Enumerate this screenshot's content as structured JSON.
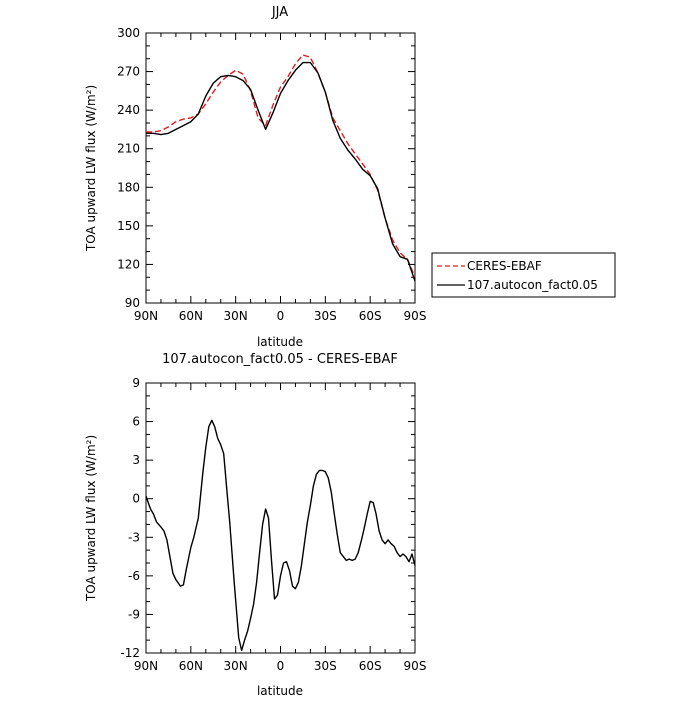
{
  "chart_data": [
    {
      "type": "line",
      "title": "JJA",
      "xlabel": "latitude",
      "ylabel": "TOA upward LW flux (W/m²)",
      "xlim": [
        90,
        -90
      ],
      "ylim": [
        90,
        300
      ],
      "xtick_values": [
        90,
        60,
        30,
        0,
        -30,
        -60,
        -90
      ],
      "xtick_labels": [
        "90N",
        "60N",
        "30N",
        "0",
        "30S",
        "60S",
        "90S"
      ],
      "ytick_values": [
        90,
        120,
        150,
        180,
        210,
        240,
        270,
        300
      ],
      "ytick_labels": [
        "90",
        "120",
        "150",
        "180",
        "210",
        "240",
        "270",
        "300"
      ],
      "legend": "right",
      "series": [
        {
          "name": "CERES-EBAF",
          "color": "#e31a1c",
          "dash": "dashed",
          "x": [
            90,
            85,
            80,
            75,
            70,
            65,
            60,
            55,
            50,
            45,
            40,
            35,
            30,
            25,
            20,
            15,
            10,
            5,
            0,
            -5,
            -10,
            -15,
            -20,
            -25,
            -30,
            -35,
            -40,
            -45,
            -50,
            -55,
            -60,
            -65,
            -70,
            -75,
            -80,
            -85,
            -90
          ],
          "y": [
            223,
            223,
            224,
            227,
            231,
            233,
            234,
            237,
            245,
            254,
            262,
            267,
            271,
            268,
            255,
            234,
            228,
            244,
            258,
            266,
            276,
            283,
            281,
            269,
            254,
            234,
            224,
            214,
            206,
            198,
            190,
            178,
            156,
            139,
            129,
            124,
            110
          ]
        },
        {
          "name": "107.autocon_fact0.05",
          "color": "#000000",
          "dash": "solid",
          "x": [
            90,
            85,
            80,
            75,
            70,
            65,
            60,
            55,
            50,
            45,
            40,
            35,
            30,
            25,
            20,
            15,
            10,
            5,
            0,
            -5,
            -10,
            -15,
            -20,
            -25,
            -30,
            -35,
            -40,
            -45,
            -50,
            -55,
            -60,
            -65,
            -70,
            -75,
            -80,
            -85,
            -90
          ],
          "y": [
            222,
            222,
            221,
            222,
            225,
            228,
            231,
            237,
            251,
            261,
            266,
            267,
            266,
            263,
            256,
            240,
            225,
            238,
            253,
            263,
            271,
            277,
            277,
            269,
            254,
            232,
            218,
            209,
            202,
            194,
            189,
            179,
            156,
            136,
            126,
            124,
            107
          ]
        }
      ]
    },
    {
      "type": "line",
      "title": "107.autocon_fact0.05 - CERES-EBAF",
      "xlabel": "latitude",
      "ylabel": "TOA upward LW flux (W/m²)",
      "xlim": [
        90,
        -90
      ],
      "ylim": [
        -12,
        9
      ],
      "xtick_values": [
        90,
        60,
        30,
        0,
        -30,
        -60,
        -90
      ],
      "xtick_labels": [
        "90N",
        "60N",
        "30N",
        "0",
        "30S",
        "60S",
        "90S"
      ],
      "ytick_values": [
        -12,
        -9,
        -6,
        -3,
        0,
        3,
        6,
        9
      ],
      "ytick_labels": [
        "-12",
        "-9",
        "-6",
        "-3",
        "0",
        "3",
        "6",
        "9"
      ],
      "series": [
        {
          "name": "",
          "color": "#000000",
          "dash": "solid",
          "x": [
            90,
            87,
            85,
            83,
            80,
            78,
            76,
            74,
            72,
            70,
            67,
            65,
            63,
            60,
            58,
            55,
            52,
            50,
            48,
            46,
            44,
            42,
            40,
            38,
            36,
            34,
            31,
            28,
            26,
            24,
            22,
            20,
            18,
            16,
            14,
            12,
            10,
            8,
            6,
            4,
            2,
            0,
            -2,
            -4,
            -6,
            -8,
            -10,
            -12,
            -14,
            -16,
            -18,
            -20,
            -22,
            -24,
            -26,
            -28,
            -30,
            -32,
            -34,
            -36,
            -38,
            -40,
            -42,
            -44,
            -46,
            -48,
            -50,
            -52,
            -54,
            -56,
            -58,
            -60,
            -62,
            -64,
            -66,
            -68,
            -70,
            -72,
            -74,
            -76,
            -78,
            -80,
            -82,
            -84,
            -86,
            -88,
            -90
          ],
          "y": [
            0.2,
            -0.8,
            -1.2,
            -1.8,
            -2.2,
            -2.5,
            -3.2,
            -4.5,
            -5.8,
            -6.3,
            -6.8,
            -6.7,
            -5.5,
            -3.8,
            -3.0,
            -1.5,
            2.0,
            4.0,
            5.6,
            6.1,
            5.6,
            4.7,
            4.2,
            3.5,
            0.8,
            -1.8,
            -6.5,
            -10.8,
            -11.8,
            -11.0,
            -10.3,
            -9.3,
            -8.2,
            -6.5,
            -4.2,
            -2.0,
            -0.8,
            -1.5,
            -4.8,
            -7.8,
            -7.5,
            -6.0,
            -5.0,
            -4.9,
            -5.6,
            -6.8,
            -7.0,
            -6.5,
            -5.2,
            -3.5,
            -1.8,
            -0.5,
            1.0,
            1.9,
            2.2,
            2.2,
            2.1,
            1.6,
            0.5,
            -1.2,
            -2.8,
            -4.2,
            -4.5,
            -4.8,
            -4.7,
            -4.8,
            -4.7,
            -4.2,
            -3.3,
            -2.3,
            -1.2,
            -0.2,
            -0.3,
            -1.2,
            -2.5,
            -3.2,
            -3.5,
            -3.2,
            -3.5,
            -3.7,
            -4.2,
            -4.5,
            -4.3,
            -4.5,
            -4.9,
            -4.3,
            -5.2
          ]
        }
      ]
    }
  ],
  "legend": {
    "entries": [
      {
        "label": "CERES-EBAF",
        "color": "#e31a1c",
        "dash": "dashed"
      },
      {
        "label": "107.autocon_fact0.05",
        "color": "#000000",
        "dash": "solid"
      }
    ]
  }
}
